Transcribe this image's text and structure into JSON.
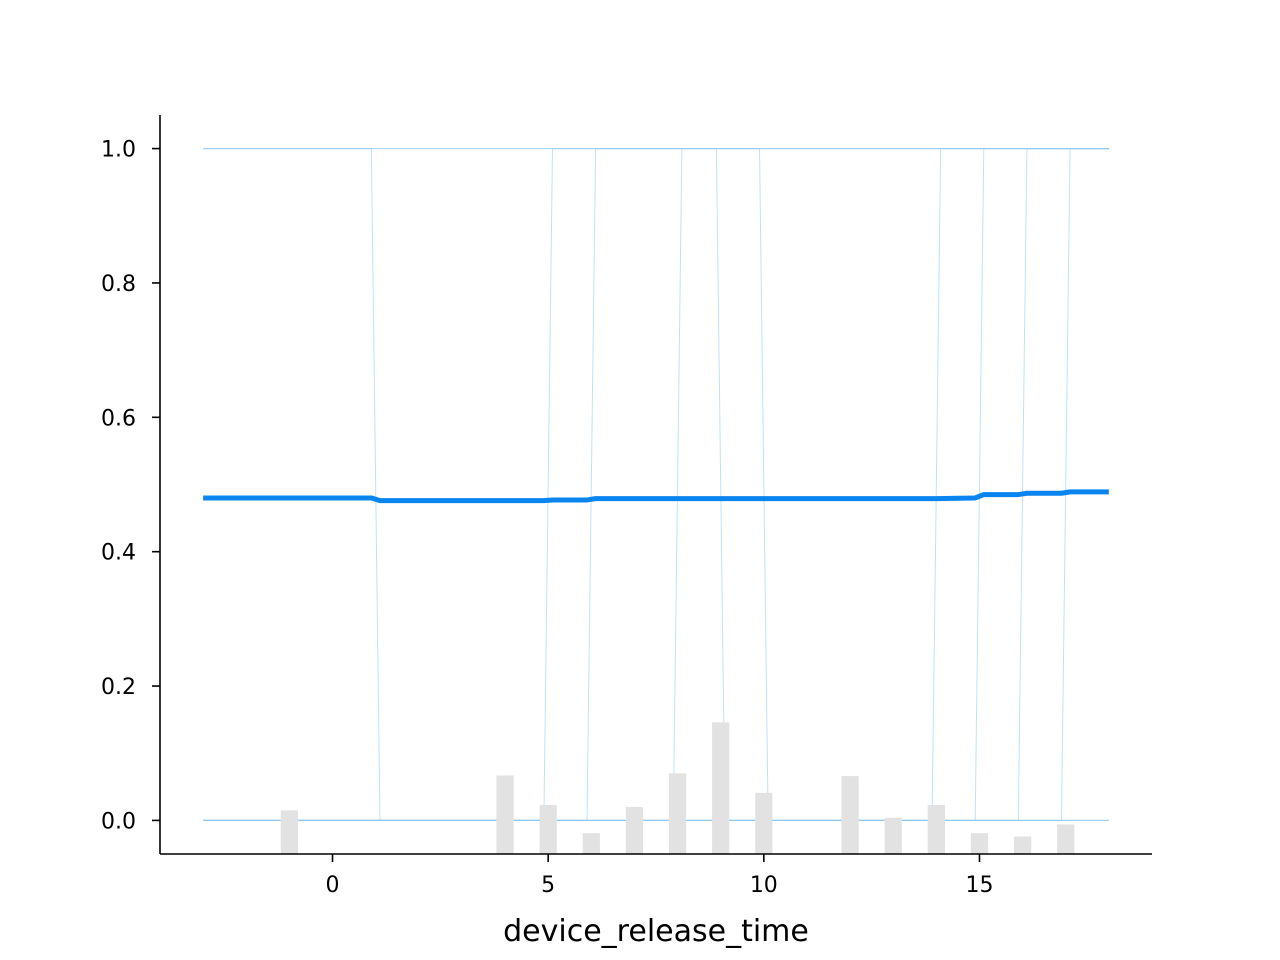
{
  "chart_data": {
    "type": "line",
    "title": "",
    "xlabel": "device_release_time",
    "ylabel": "",
    "xlim": [
      -4,
      19
    ],
    "ylim": [
      -0.05,
      1.05
    ],
    "x_ticks": [
      0,
      5,
      10,
      15
    ],
    "x_tick_labels": [
      "0",
      "5",
      "10",
      "15"
    ],
    "y_ticks": [
      0.0,
      0.2,
      0.4,
      0.6,
      0.8,
      1.0
    ],
    "y_tick_labels": [
      "0.0",
      "0.2",
      "0.4",
      "0.6",
      "0.8",
      "1.0"
    ],
    "grid": false,
    "colors": {
      "average_line": "#0a84ef",
      "ice_lines": "#8cc8f2",
      "histogram": "#e2e2e2",
      "axis": "#000000"
    },
    "average_curve": {
      "x": [
        -3,
        0.9,
        1.1,
        4.9,
        5.1,
        5.9,
        6.1,
        10,
        14,
        14.9,
        15.1,
        15.9,
        16.1,
        16.9,
        17.1,
        18
      ],
      "y": [
        0.48,
        0.48,
        0.476,
        0.476,
        0.477,
        0.477,
        0.479,
        0.479,
        0.479,
        0.48,
        0.485,
        0.485,
        0.487,
        0.487,
        0.489,
        0.489
      ]
    },
    "ice_lines": [
      {
        "x": [
          -3,
          0.9,
          1.1,
          18
        ],
        "y": [
          1.0,
          1.0,
          0.0,
          0.0
        ]
      },
      {
        "x": [
          -3,
          14.9,
          15.1,
          18
        ],
        "y": [
          0.0,
          0.0,
          1.0,
          1.0
        ]
      },
      {
        "x": [
          -3,
          4.9,
          5.1,
          18
        ],
        "y": [
          0.0,
          0.0,
          1.0,
          1.0
        ]
      },
      {
        "x": [
          -3,
          5.9,
          6.1,
          18
        ],
        "y": [
          0.0,
          0.0,
          1.0,
          1.0
        ]
      },
      {
        "x": [
          -3,
          15.9,
          16.1,
          18
        ],
        "y": [
          0.0,
          0.0,
          1.0,
          1.0
        ]
      },
      {
        "x": [
          -3,
          16.9,
          17.1,
          18
        ],
        "y": [
          0.0,
          0.0,
          1.0,
          1.0
        ]
      },
      {
        "x": [
          -3,
          13.9,
          14.1,
          18
        ],
        "y": [
          0.0,
          0.0,
          1.0,
          1.0
        ]
      },
      {
        "x": [
          -3,
          9.9,
          10.1,
          18
        ],
        "y": [
          1.0,
          1.0,
          0.0,
          0.0
        ]
      },
      {
        "x": [
          -3,
          8.9,
          9.1,
          18
        ],
        "y": [
          1.0,
          1.0,
          0.0,
          0.0
        ]
      },
      {
        "x": [
          -3,
          7.9,
          8.1,
          18
        ],
        "y": [
          0.0,
          0.0,
          1.0,
          1.0
        ]
      }
    ],
    "histogram": {
      "x": [
        -1,
        4,
        5,
        6,
        7,
        8,
        9,
        10,
        12,
        13,
        14,
        15,
        16,
        17
      ],
      "top": [
        0.015,
        0.067,
        0.023,
        -0.019,
        0.02,
        0.07,
        0.146,
        0.041,
        0.066,
        0.004,
        0.023,
        -0.019,
        -0.024,
        -0.006
      ]
    }
  }
}
